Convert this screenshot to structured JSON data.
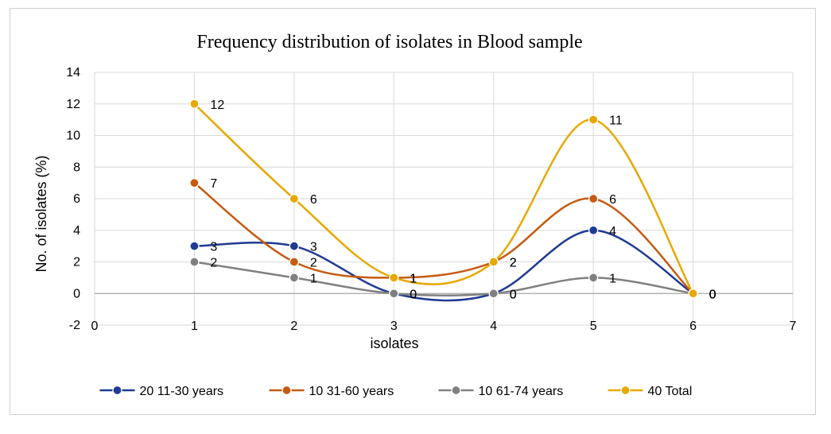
{
  "chart_data": {
    "type": "line",
    "smooth": true,
    "title": "Frequency distribution of isolates in Blood sample",
    "xlabel": "isolates",
    "ylabel": "No. of isolates (%)",
    "xlim": [
      0,
      7
    ],
    "ylim": [
      -2,
      14
    ],
    "x_ticks": [
      0,
      1,
      2,
      3,
      4,
      5,
      6,
      7
    ],
    "y_ticks": [
      -2,
      0,
      2,
      4,
      6,
      8,
      10,
      12,
      14
    ],
    "grid": true,
    "legend_position": "bottom",
    "x": [
      1,
      2,
      3,
      4,
      5,
      6
    ],
    "series": [
      {
        "name": "20 11-30 years",
        "values": [
          3,
          3,
          0,
          0,
          4,
          0
        ],
        "color": "#1f3a93"
      },
      {
        "name": "10 31-60 years",
        "values": [
          7,
          2,
          1,
          2,
          6,
          0
        ],
        "color": "#c55a11"
      },
      {
        "name": "10 61-74 years",
        "values": [
          2,
          1,
          0,
          0,
          1,
          0
        ],
        "color": "#808080"
      },
      {
        "name": "40 Total",
        "values": [
          12,
          6,
          1,
          2,
          11,
          0
        ],
        "color": "#e8a800"
      }
    ]
  }
}
